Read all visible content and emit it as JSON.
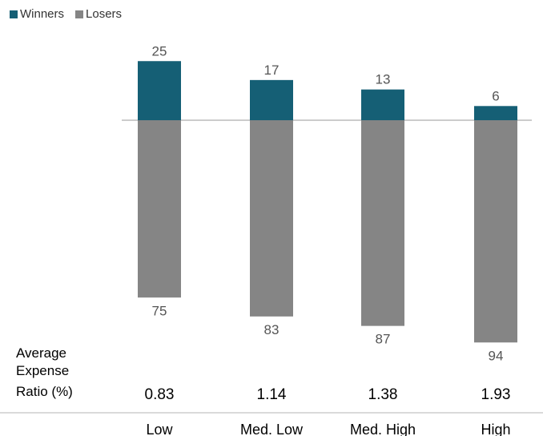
{
  "chart_data": {
    "type": "bar",
    "stacked": "diverging",
    "legend": {
      "position": "top-left"
    },
    "categories": [
      "Low",
      "Med. Low",
      "Med. High",
      "High"
    ],
    "series": [
      {
        "name": "Winners",
        "color": "#155f75",
        "values": [
          25,
          17,
          13,
          6
        ]
      },
      {
        "name": "Losers",
        "color": "#858585",
        "values": [
          75,
          83,
          87,
          94
        ]
      }
    ],
    "row_label": [
      "Average",
      "Expense",
      "Ratio (%)"
    ],
    "expense_ratios": [
      "0.83",
      "1.14",
      "1.38",
      "1.93"
    ],
    "zero_line": true
  }
}
